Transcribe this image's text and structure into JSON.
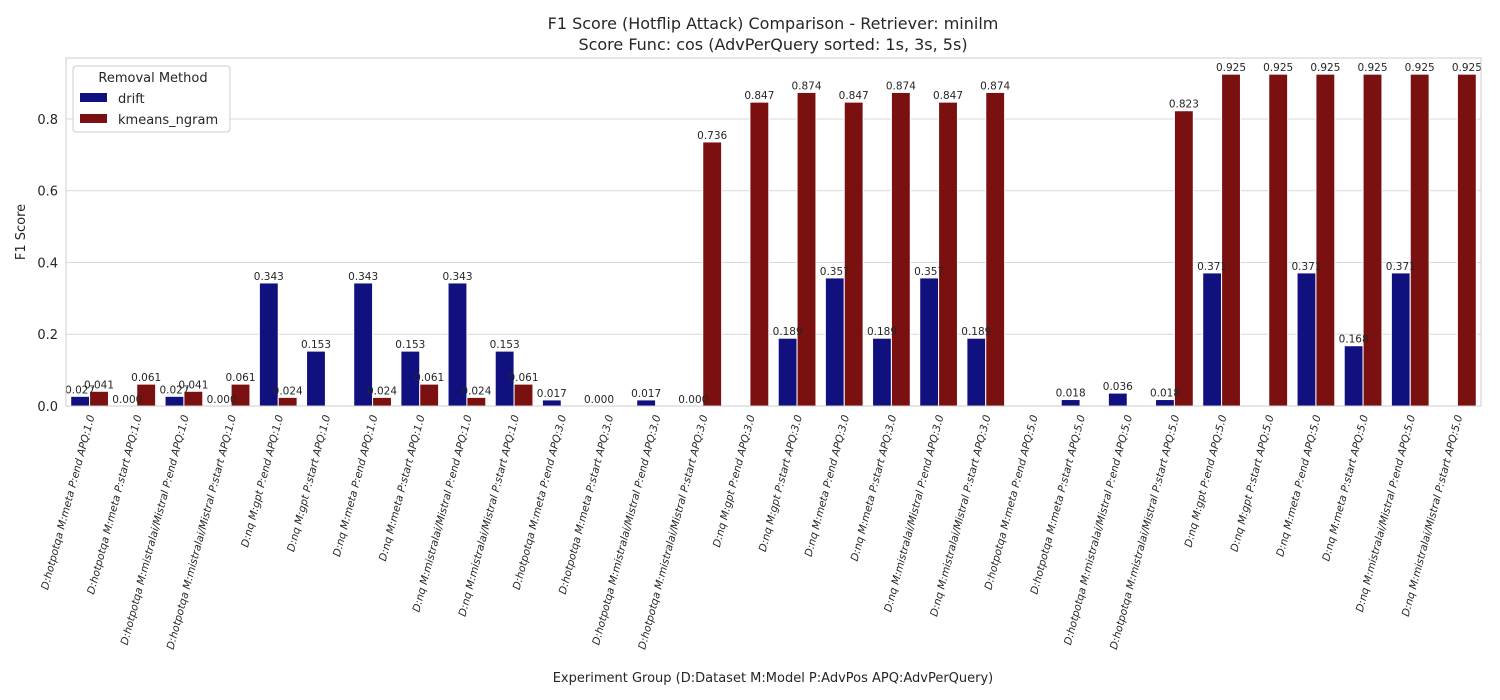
{
  "chart_data": {
    "type": "bar",
    "title": "F1 Score (Hotflip Attack) Comparison - Retriever: minilm",
    "subtitle": "Score Func: cos (AdvPerQuery sorted: 1s, 3s, 5s)",
    "xlabel": "Experiment Group (D:Dataset M:Model P:AdvPos APQ:AdvPerQuery)",
    "ylabel": "F1 Score",
    "ylim": [
      0,
      0.97
    ],
    "yticks": [
      "0.0",
      "0.2",
      "0.4",
      "0.6",
      "0.8"
    ],
    "grid": true,
    "legend": {
      "title": "Removal Method",
      "placement": "top-left"
    },
    "categories": [
      "D:hotpotqa M:meta P:end APQ:1.0",
      "D:hotpotqa M:meta P:start APQ:1.0",
      "D:hotpotqa M:mistralai/Mistral P:end APQ:1.0",
      "D:hotpotqa M:mistralai/Mistral P:start APQ:1.0",
      "D:nq M:gpt P:end APQ:1.0",
      "D:nq M:gpt P:start APQ:1.0",
      "D:nq M:meta P:end APQ:1.0",
      "D:nq M:meta P:start APQ:1.0",
      "D:nq M:mistralai/Mistral P:end APQ:1.0",
      "D:nq M:mistralai/Mistral P:start APQ:1.0",
      "D:hotpotqa M:meta P:end APQ:3.0",
      "D:hotpotqa M:meta P:start APQ:3.0",
      "D:hotpotqa M:mistralai/Mistral P:end APQ:3.0",
      "D:hotpotqa M:mistralai/Mistral P:start APQ:3.0",
      "D:nq M:gpt P:end APQ:3.0",
      "D:nq M:gpt P:start APQ:3.0",
      "D:nq M:meta P:end APQ:3.0",
      "D:nq M:meta P:start APQ:3.0",
      "D:nq M:mistralai/Mistral P:end APQ:3.0",
      "D:nq M:mistralai/Mistral P:start APQ:3.0",
      "D:hotpotqa M:meta P:end APQ:5.0",
      "D:hotpotqa M:meta P:start APQ:5.0",
      "D:hotpotqa M:mistralai/Mistral P:end APQ:5.0",
      "D:hotpotqa M:mistralai/Mistral P:start APQ:5.0",
      "D:nq M:gpt P:end APQ:5.0",
      "D:nq M:gpt P:start APQ:5.0",
      "D:nq M:meta P:end APQ:5.0",
      "D:nq M:meta P:start APQ:5.0",
      "D:nq M:mistralai/Mistral P:end APQ:5.0",
      "D:nq M:mistralai/Mistral P:start APQ:5.0"
    ],
    "series": [
      {
        "name": "drift",
        "color": "#10107f",
        "values": [
          0.027,
          0.0,
          0.027,
          0.0,
          0.343,
          0.153,
          0.343,
          0.153,
          0.343,
          0.153,
          0.017,
          0.0,
          0.017,
          0.0,
          null,
          0.189,
          0.357,
          0.189,
          0.357,
          0.189,
          null,
          0.018,
          0.036,
          0.018,
          0.371,
          null,
          0.371,
          0.168,
          0.371,
          null
        ],
        "labels": [
          "0.027",
          "0.000",
          "0.027",
          "0.000",
          "0.343",
          "0.153",
          "0.343",
          "0.153",
          "0.343",
          "0.153",
          "0.017",
          "0.000",
          "0.017",
          "0.000",
          null,
          "0.189",
          "0.357",
          "0.189",
          "0.357",
          "0.189",
          null,
          "0.018",
          "0.036",
          "0.018",
          "0.371",
          null,
          "0.371",
          "0.168",
          "0.371",
          null
        ]
      },
      {
        "name": "kmeans_ngram",
        "color": "#7a1010",
        "values": [
          0.041,
          0.061,
          0.041,
          0.061,
          0.024,
          null,
          0.024,
          0.061,
          0.024,
          0.061,
          null,
          null,
          null,
          0.736,
          0.847,
          0.874,
          0.847,
          0.874,
          0.847,
          0.874,
          null,
          null,
          null,
          0.823,
          0.925,
          0.925,
          0.925,
          0.925,
          0.925,
          0.925
        ],
        "labels": [
          "0.041",
          "0.061",
          "0.041",
          "0.061",
          "0.024",
          null,
          "0.024",
          "0.061",
          "0.024",
          "0.061",
          null,
          null,
          null,
          "0.736",
          "0.847",
          "0.874",
          "0.847",
          "0.874",
          "0.847",
          "0.874",
          null,
          null,
          null,
          "0.823",
          "0.925",
          "0.925",
          "0.925",
          "0.925",
          "0.925",
          "0.925"
        ]
      }
    ]
  }
}
